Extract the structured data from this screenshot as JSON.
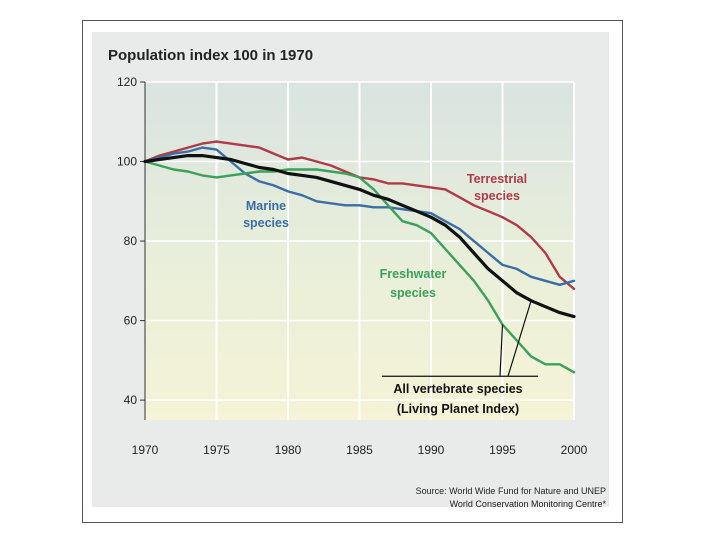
{
  "chart_data": {
    "type": "line",
    "title": "Population index 100 in 1970",
    "xlabel": "",
    "ylabel": "",
    "xlim": [
      1970,
      2000
    ],
    "ylim": [
      35,
      120
    ],
    "x_ticks": [
      1970,
      1975,
      1980,
      1985,
      1990,
      1995,
      2000
    ],
    "y_ticks": [
      40,
      60,
      80,
      100,
      120
    ],
    "x_tick_labels": [
      "1970",
      "1975",
      "1980",
      "1985",
      "1990",
      "1995",
      "2000"
    ],
    "y_tick_labels": [
      "40",
      "60",
      "80",
      "100",
      "120"
    ],
    "series": [
      {
        "name": "Terrestrial species",
        "label_lines": [
          "Terrestrial",
          "species"
        ],
        "color": "#b03a48",
        "x": [
          1970,
          1971,
          1972,
          1973,
          1974,
          1975,
          1976,
          1977,
          1978,
          1979,
          1980,
          1981,
          1982,
          1983,
          1984,
          1985,
          1986,
          1987,
          1988,
          1989,
          1990,
          1991,
          1992,
          1993,
          1994,
          1995,
          1996,
          1997,
          1998,
          1999,
          2000
        ],
        "values": [
          100,
          101.5,
          102.5,
          103.5,
          104.5,
          105,
          104.5,
          104,
          103.5,
          102,
          100.5,
          101,
          100,
          99,
          97.5,
          96,
          95.5,
          94.5,
          94.5,
          94,
          93.5,
          93,
          91,
          89,
          87.5,
          86,
          84,
          81,
          77,
          71,
          68
        ]
      },
      {
        "name": "Marine species",
        "label_lines": [
          "Marine",
          "species"
        ],
        "color": "#3a6ea5",
        "x": [
          1970,
          1971,
          1972,
          1973,
          1974,
          1975,
          1976,
          1977,
          1978,
          1979,
          1980,
          1981,
          1982,
          1983,
          1984,
          1985,
          1986,
          1987,
          1988,
          1989,
          1990,
          1991,
          1992,
          1993,
          1994,
          1995,
          1996,
          1997,
          1998,
          1999,
          2000
        ],
        "values": [
          100,
          101,
          102,
          102.5,
          103.5,
          103,
          100,
          97,
          95,
          94,
          92.5,
          91.5,
          90,
          89.5,
          89,
          89,
          88.5,
          88.5,
          88,
          87.5,
          87,
          85,
          83,
          80,
          77,
          74,
          73,
          71,
          70,
          69,
          70
        ]
      },
      {
        "name": "Freshwater species",
        "label_lines": [
          "Freshwater",
          "species"
        ],
        "color": "#3aa05a",
        "x": [
          1970,
          1971,
          1972,
          1973,
          1974,
          1975,
          1976,
          1977,
          1978,
          1979,
          1980,
          1981,
          1982,
          1983,
          1984,
          1985,
          1986,
          1987,
          1988,
          1989,
          1990,
          1991,
          1992,
          1993,
          1994,
          1995,
          1996,
          1997,
          1998,
          1999,
          2000
        ],
        "values": [
          100,
          99,
          98,
          97.5,
          96.5,
          96,
          96.5,
          97,
          97.5,
          97.5,
          98,
          98,
          98,
          97.5,
          97,
          96,
          93,
          89,
          85,
          84,
          82,
          78,
          74,
          70,
          65,
          59,
          55,
          51,
          49,
          49,
          47
        ]
      },
      {
        "name": "All vertebrate species (Living Planet Index)",
        "label_lines": [
          "All vertebrate species",
          "(Living Planet Index)"
        ],
        "color": "#111111",
        "x": [
          1970,
          1971,
          1972,
          1973,
          1974,
          1975,
          1976,
          1977,
          1978,
          1979,
          1980,
          1981,
          1982,
          1983,
          1984,
          1985,
          1986,
          1987,
          1988,
          1989,
          1990,
          1991,
          1992,
          1993,
          1994,
          1995,
          1996,
          1997,
          1998,
          1999,
          2000
        ],
        "values": [
          100,
          100.5,
          101,
          101.5,
          101.5,
          101,
          100.5,
          99.5,
          98.5,
          98,
          97,
          96.5,
          96,
          95,
          94,
          93,
          91.5,
          90.5,
          89,
          87.5,
          86,
          84,
          81,
          77,
          73,
          70,
          67,
          65,
          63.5,
          62,
          61
        ]
      }
    ],
    "source_lines": [
      "Source: World Wide Fund for Nature and UNEP",
      "World Conservation Monitoring Centre*"
    ]
  }
}
